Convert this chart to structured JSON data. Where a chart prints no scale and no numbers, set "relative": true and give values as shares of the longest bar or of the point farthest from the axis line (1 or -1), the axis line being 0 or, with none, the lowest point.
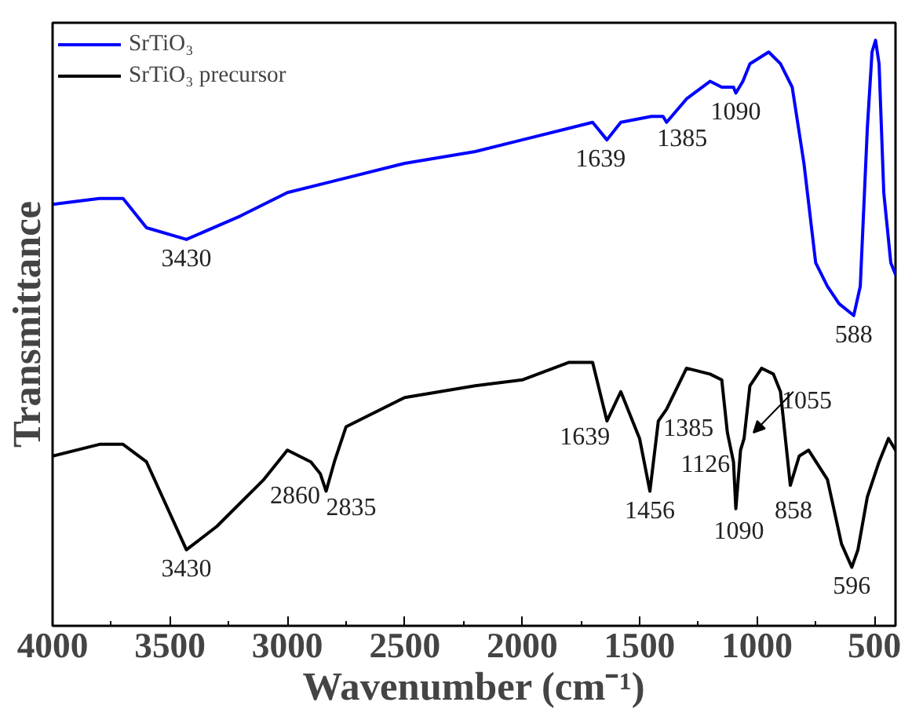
{
  "chart_data": {
    "type": "line",
    "relative": true,
    "xlabel": "Wavenumber (cm⁻¹)",
    "ylabel": "Transmittance",
    "xlim": [
      4000,
      410
    ],
    "xticks": [
      4000,
      3500,
      3000,
      2500,
      2000,
      1500,
      1000,
      500
    ],
    "grid": false,
    "legend": "top left",
    "marker": "none",
    "line_style": "solid",
    "series": [
      {
        "name": "SrTiO₃",
        "color": "#0000ff",
        "x": [
          4000,
          3800,
          3700,
          3600,
          3430,
          3200,
          3000,
          2800,
          2500,
          2200,
          2000,
          1800,
          1700,
          1639,
          1580,
          1450,
          1400,
          1385,
          1300,
          1200,
          1150,
          1100,
          1090,
          1060,
          1030,
          950,
          900,
          850,
          800,
          750,
          700,
          650,
          588,
          560,
          530,
          510,
          495,
          480,
          460,
          430,
          410
        ],
        "values": [
          0.72,
          0.73,
          0.73,
          0.68,
          0.66,
          0.7,
          0.74,
          0.76,
          0.79,
          0.81,
          0.83,
          0.85,
          0.86,
          0.83,
          0.86,
          0.87,
          0.87,
          0.86,
          0.9,
          0.93,
          0.92,
          0.92,
          0.91,
          0.93,
          0.96,
          0.98,
          0.96,
          0.92,
          0.79,
          0.62,
          0.58,
          0.55,
          0.53,
          0.58,
          0.85,
          0.98,
          1.0,
          0.96,
          0.74,
          0.62,
          0.6
        ]
      },
      {
        "name": "SrTiO₃ precursor",
        "color": "#000000",
        "x": [
          4000,
          3800,
          3700,
          3600,
          3430,
          3300,
          3100,
          3000,
          2950,
          2900,
          2860,
          2835,
          2800,
          2750,
          2700,
          2500,
          2200,
          2000,
          1800,
          1700,
          1639,
          1580,
          1500,
          1456,
          1420,
          1385,
          1300,
          1200,
          1150,
          1126,
          1100,
          1090,
          1070,
          1055,
          1030,
          980,
          930,
          900,
          858,
          820,
          780,
          700,
          640,
          596,
          570,
          530,
          480,
          440,
          410
        ],
        "values": [
          0.29,
          0.31,
          0.31,
          0.28,
          0.13,
          0.17,
          0.25,
          0.3,
          0.29,
          0.28,
          0.26,
          0.23,
          0.28,
          0.34,
          0.35,
          0.39,
          0.41,
          0.42,
          0.45,
          0.45,
          0.35,
          0.4,
          0.32,
          0.23,
          0.35,
          0.37,
          0.44,
          0.43,
          0.42,
          0.33,
          0.28,
          0.2,
          0.3,
          0.32,
          0.41,
          0.44,
          0.43,
          0.4,
          0.24,
          0.29,
          0.3,
          0.25,
          0.14,
          0.1,
          0.13,
          0.22,
          0.28,
          0.32,
          0.3
        ]
      }
    ],
    "annotations": [
      {
        "text": "3430",
        "x": 3430,
        "y": 0.66
      },
      {
        "text": "1639",
        "x": 1639,
        "y": 0.83
      },
      {
        "text": "1385",
        "x": 1385,
        "y": 0.86
      },
      {
        "text": "1090",
        "x": 1090,
        "y": 0.91
      },
      {
        "text": "588",
        "x": 588,
        "y": 0.53
      },
      {
        "text": "3430",
        "x": 3430,
        "y": 0.13
      },
      {
        "text": "2860",
        "x": 2860,
        "y": 0.26
      },
      {
        "text": "2835",
        "x": 2835,
        "y": 0.23
      },
      {
        "text": "1639",
        "x": 1639,
        "y": 0.35
      },
      {
        "text": "1385",
        "x": 1385,
        "y": 0.37
      },
      {
        "text": "1456",
        "x": 1456,
        "y": 0.23
      },
      {
        "text": "1126",
        "x": 1126,
        "y": 0.33
      },
      {
        "text": "1055",
        "x": 1055,
        "y": 0.32
      },
      {
        "text": "1090",
        "x": 1090,
        "y": 0.2
      },
      {
        "text": "858",
        "x": 858,
        "y": 0.24
      },
      {
        "text": "596",
        "x": 596,
        "y": 0.1
      }
    ]
  }
}
